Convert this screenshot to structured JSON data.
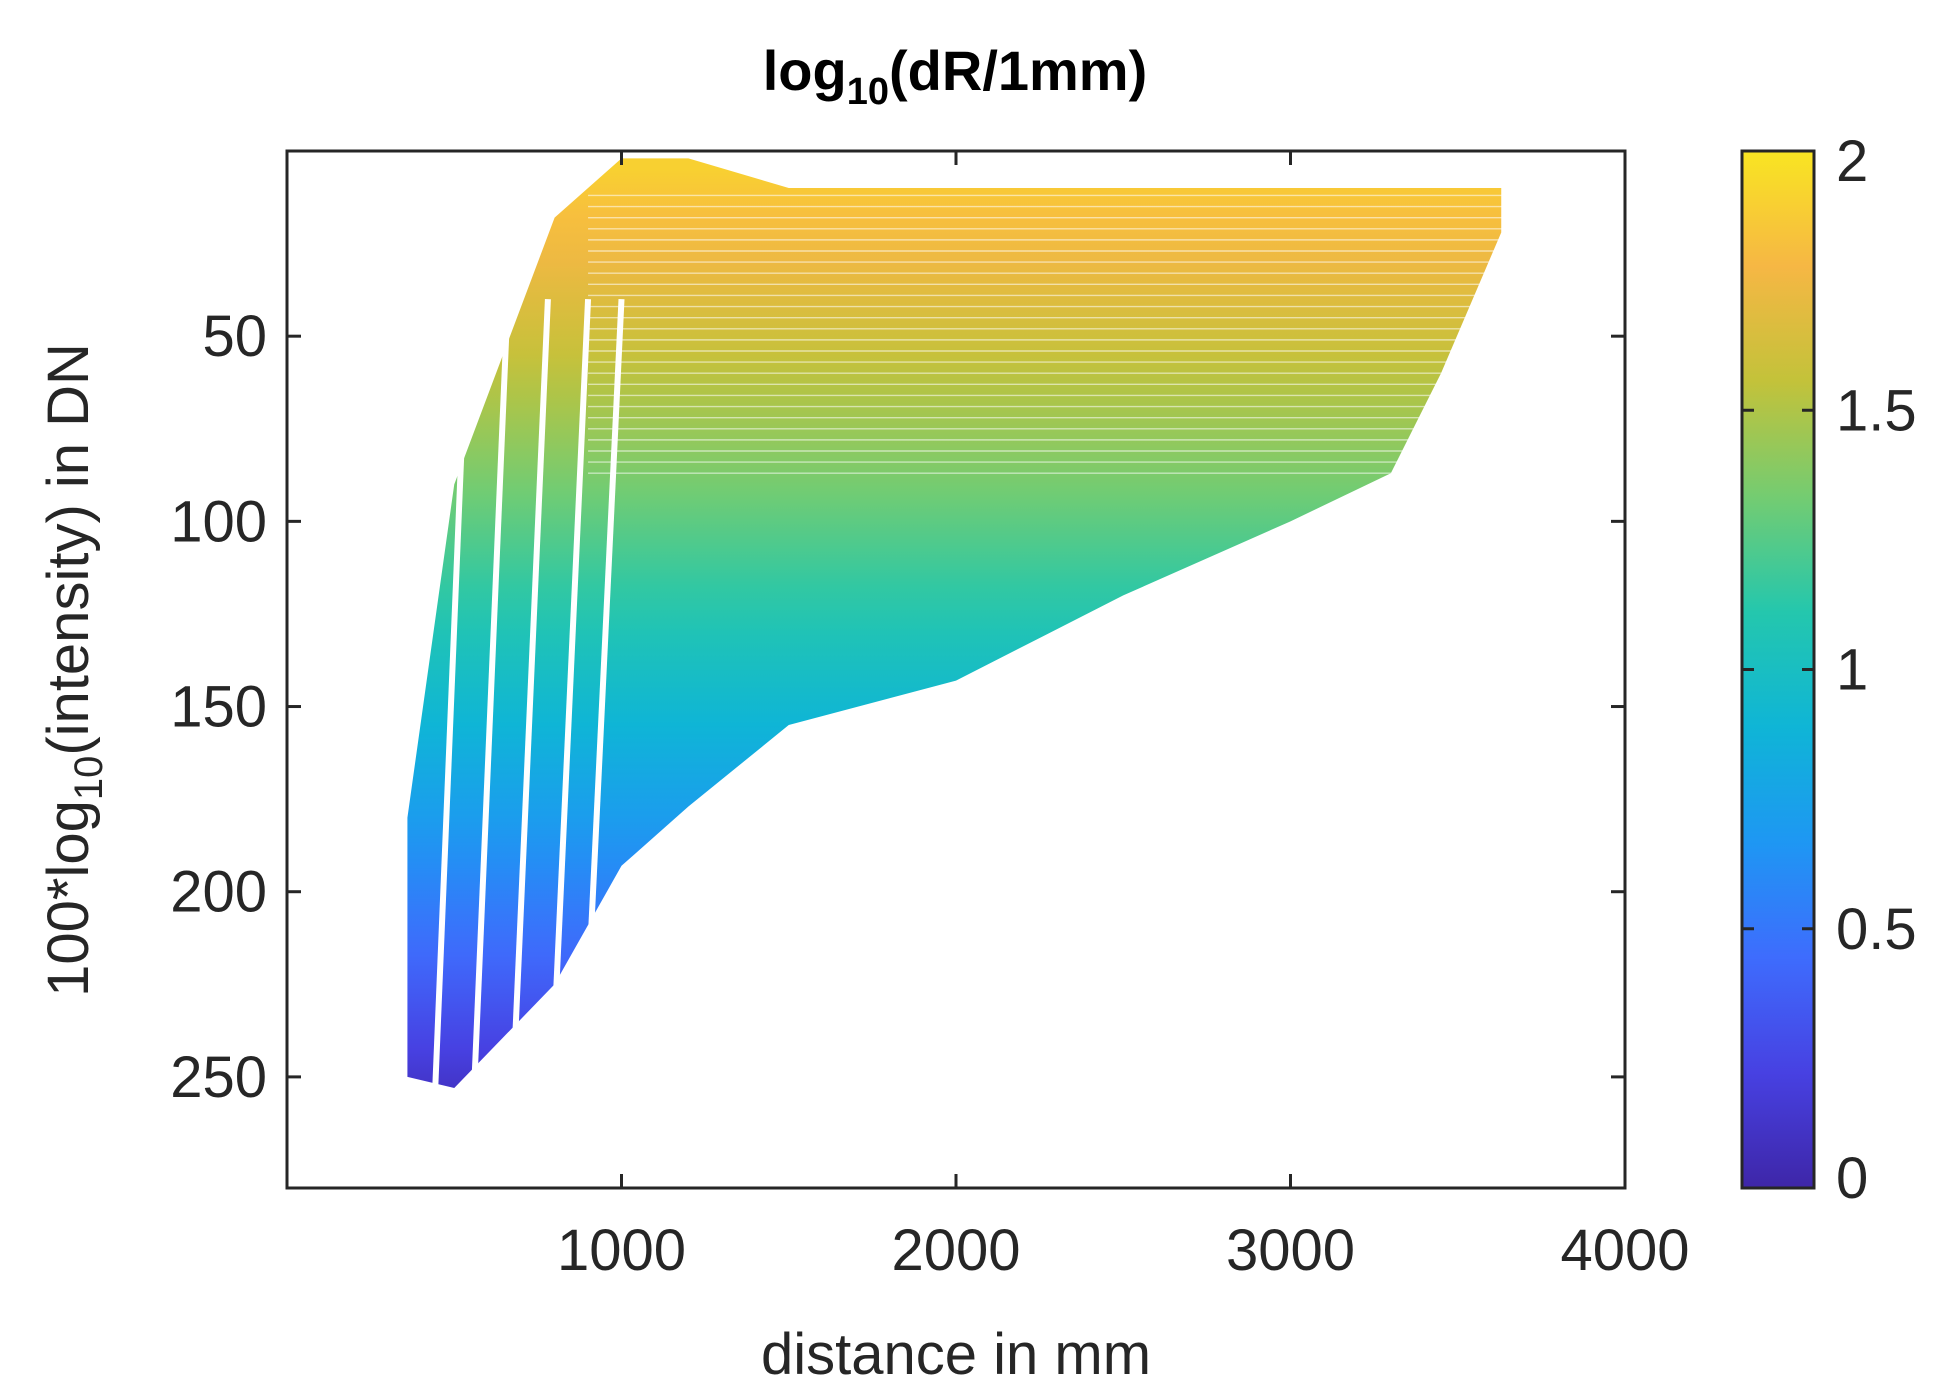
{
  "chart_data": {
    "type": "heatmap",
    "title": {
      "main": "log",
      "sub": "10",
      "rest": "(dR/1mm)"
    },
    "xlabel": "distance in mm",
    "ylabel": {
      "pre": "100*log",
      "sub": "10",
      "post": "(intensity) in DN"
    },
    "xlim": [
      0,
      4000
    ],
    "ylim": [
      0,
      280
    ],
    "y_reversed": true,
    "x_ticks": [
      1000,
      2000,
      3000,
      4000
    ],
    "x_tick_labels": [
      "1000",
      "2000",
      "3000",
      "4000"
    ],
    "y_ticks": [
      50,
      100,
      150,
      200,
      250
    ],
    "y_tick_labels": [
      "50",
      "100",
      "150",
      "200",
      "250"
    ],
    "colorbar": {
      "limits": [
        0,
        2
      ],
      "ticks": [
        0,
        0.5,
        1,
        1.5,
        2
      ],
      "tick_labels": [
        "0",
        "0.5",
        "1",
        "1.5",
        "2"
      ],
      "colormap": "parula"
    },
    "colormap_stops": [
      "#3e26a8",
      "#4741e2",
      "#3e6cfd",
      "#1e97f3",
      "#0fb5d6",
      "#24c7ad",
      "#74cc71",
      "#c3c23a",
      "#f6b744",
      "#f9e522"
    ],
    "data_region": {
      "description_points": [
        {
          "x": 360,
          "y_top": 180,
          "y_bottom": 250
        },
        {
          "x": 500,
          "y_top": 90,
          "y_bottom": 253
        },
        {
          "x": 800,
          "y_top": 18,
          "y_bottom": 225
        },
        {
          "x": 1000,
          "y_top": 2,
          "y_bottom": 193
        },
        {
          "x": 1200,
          "y_top": 2,
          "y_bottom": 177
        },
        {
          "x": 1500,
          "y_top": 10,
          "y_bottom": 155
        },
        {
          "x": 2000,
          "y_top": 10,
          "y_bottom": 143
        },
        {
          "x": 2500,
          "y_top": 10,
          "y_bottom": 120
        },
        {
          "x": 3000,
          "y_top": 10,
          "y_bottom": 100
        },
        {
          "x": 3300,
          "y_top": 10,
          "y_bottom": 87
        },
        {
          "x": 3450,
          "y_top": 10,
          "y_bottom": 60
        },
        {
          "x": 3630,
          "y_top": 10,
          "y_bottom": 22
        }
      ],
      "value_bottom": 0.1,
      "value_mid": 1.2,
      "value_top": 1.9
    }
  }
}
